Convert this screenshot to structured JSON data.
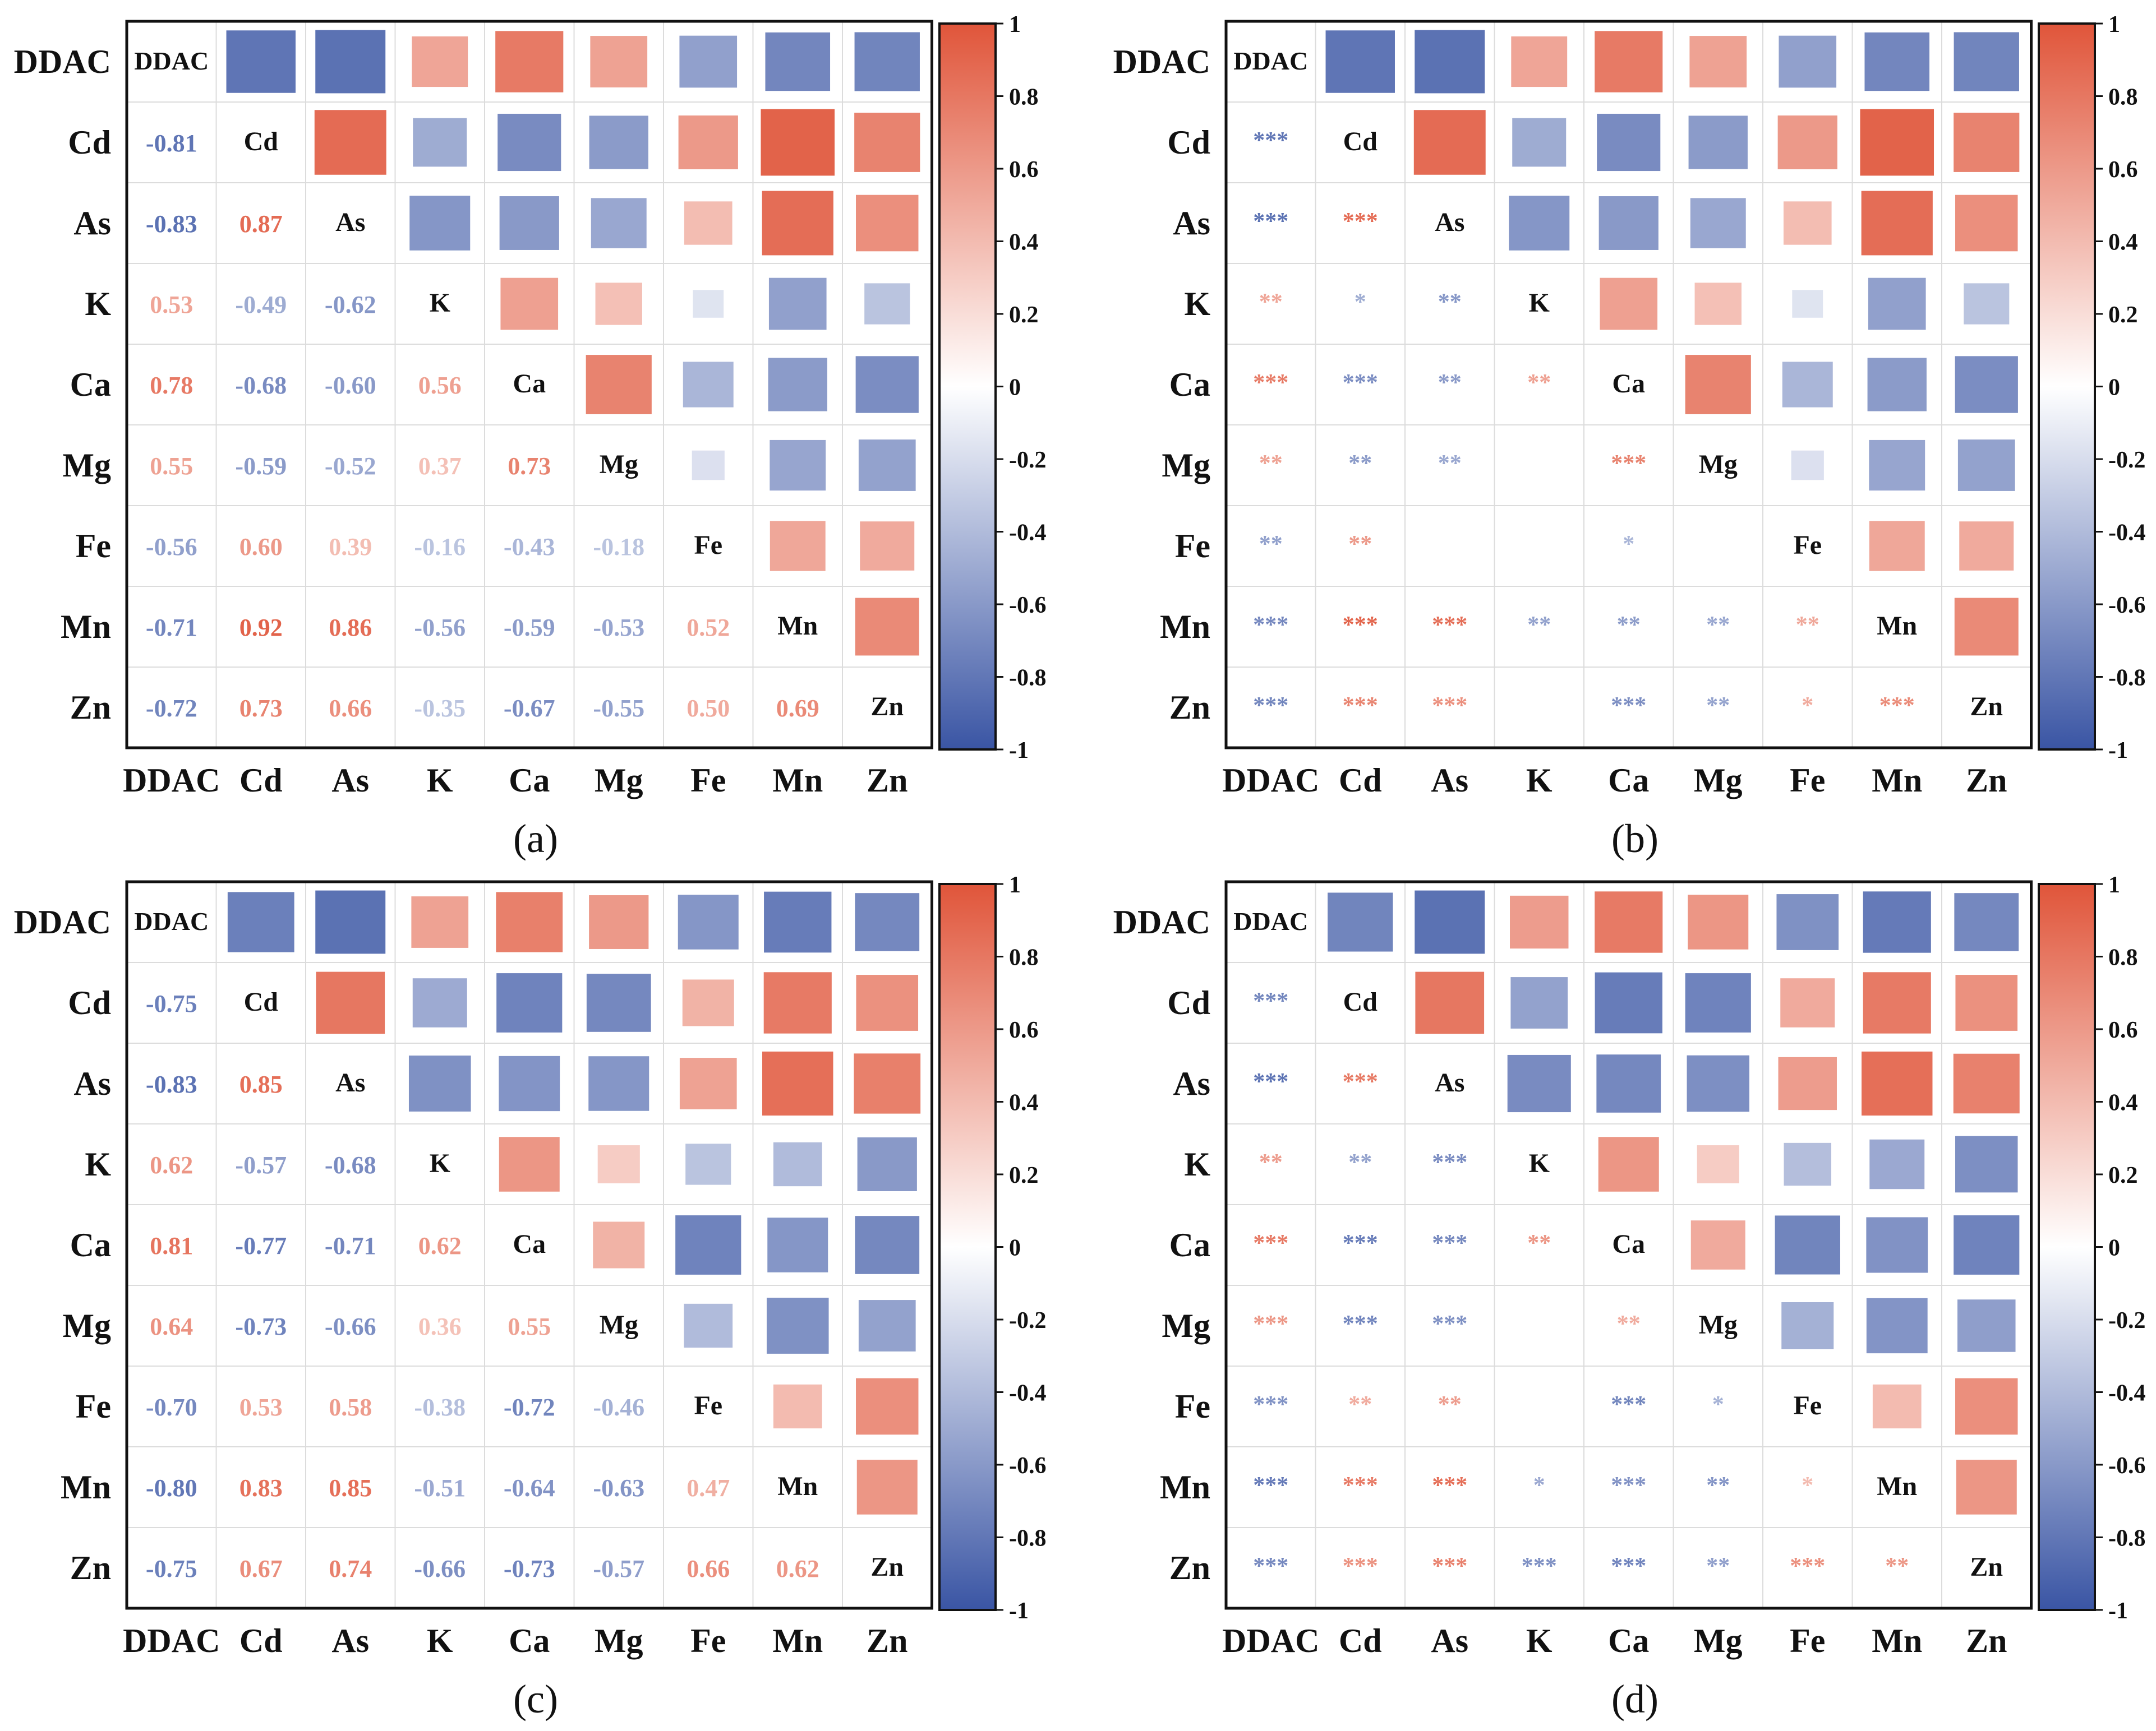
{
  "figure": {
    "panel_labels": [
      "(a)",
      "(b)",
      "(c)",
      "(d)"
    ]
  },
  "colors": {
    "negative": "#3a55a4",
    "neutral": "#ffffff",
    "positive": "#e0553a",
    "frame": "#111111",
    "grid": "#dcdcdc",
    "label": "#111111"
  },
  "chart_data": [
    {
      "type": "heatmap",
      "panel": "(a)",
      "variables": [
        "DDAC",
        "Cd",
        "As",
        "K",
        "Ca",
        "Mg",
        "Fe",
        "Mn",
        "Zn"
      ],
      "colorbar_ticks": [
        "1",
        "0.8",
        "0.6",
        "0.4",
        "0.2",
        "0",
        "-0.2",
        "-0.4",
        "-0.6",
        "-0.8",
        "-1"
      ],
      "lower_triangle": "numeric",
      "value_range": [
        -1,
        1
      ],
      "matrix": [
        [
          1,
          -0.81,
          -0.83,
          0.53,
          0.78,
          0.55,
          -0.56,
          -0.71,
          -0.72
        ],
        [
          -0.81,
          1,
          0.87,
          -0.49,
          -0.68,
          -0.59,
          0.6,
          0.92,
          0.73
        ],
        [
          -0.83,
          0.87,
          1,
          -0.62,
          -0.6,
          -0.52,
          0.39,
          0.86,
          0.66
        ],
        [
          0.53,
          -0.49,
          -0.62,
          1,
          0.56,
          0.37,
          -0.16,
          -0.56,
          -0.35
        ],
        [
          0.78,
          -0.68,
          -0.6,
          0.56,
          1,
          0.73,
          -0.43,
          -0.59,
          -0.67
        ],
        [
          0.55,
          -0.59,
          -0.52,
          0.37,
          0.73,
          1,
          -0.18,
          -0.53,
          -0.55
        ],
        [
          -0.56,
          0.6,
          0.39,
          -0.16,
          -0.43,
          -0.18,
          1,
          0.52,
          0.5
        ],
        [
          -0.71,
          0.92,
          0.86,
          -0.56,
          -0.59,
          -0.53,
          0.52,
          1,
          0.69
        ],
        [
          -0.72,
          0.73,
          0.66,
          -0.35,
          -0.67,
          -0.55,
          0.5,
          0.69,
          1
        ]
      ],
      "lower_labels": [
        [],
        [
          "-0.81"
        ],
        [
          "-0.83",
          "0.87"
        ],
        [
          "0.53",
          "-0.49",
          "-0.62"
        ],
        [
          "0.78",
          "-0.68",
          "-0.60",
          "0.56"
        ],
        [
          "0.55",
          "-0.59",
          "-0.52",
          "0.37",
          "0.73"
        ],
        [
          "-0.56",
          "0.60",
          "0.39",
          "-0.16",
          "-0.43",
          "-0.18"
        ],
        [
          "-0.71",
          "0.92",
          "0.86",
          "-0.56",
          "-0.59",
          "-0.53",
          "0.52"
        ],
        [
          "-0.72",
          "0.73",
          "0.66",
          "-0.35",
          "-0.67",
          "-0.55",
          "0.50",
          "0.69"
        ]
      ]
    },
    {
      "type": "heatmap",
      "panel": "(b)",
      "variables": [
        "DDAC",
        "Cd",
        "As",
        "K",
        "Ca",
        "Mg",
        "Fe",
        "Mn",
        "Zn"
      ],
      "colorbar_ticks": [
        "1",
        "0.8",
        "0.6",
        "0.4",
        "0.2",
        "0",
        "-0.2",
        "-0.4",
        "-0.6",
        "-0.8",
        "-1"
      ],
      "lower_triangle": "significance",
      "value_range": [
        -1,
        1
      ],
      "matrix": [
        [
          1,
          -0.81,
          -0.83,
          0.53,
          0.78,
          0.55,
          -0.56,
          -0.71,
          -0.72
        ],
        [
          -0.81,
          1,
          0.87,
          -0.49,
          -0.68,
          -0.59,
          0.6,
          0.92,
          0.73
        ],
        [
          -0.83,
          0.87,
          1,
          -0.62,
          -0.6,
          -0.52,
          0.39,
          0.86,
          0.66
        ],
        [
          0.53,
          -0.49,
          -0.62,
          1,
          0.56,
          0.37,
          -0.16,
          -0.56,
          -0.35
        ],
        [
          0.78,
          -0.68,
          -0.6,
          0.56,
          1,
          0.73,
          -0.43,
          -0.59,
          -0.67
        ],
        [
          0.55,
          -0.59,
          -0.52,
          0.37,
          0.73,
          1,
          -0.18,
          -0.53,
          -0.55
        ],
        [
          -0.56,
          0.6,
          0.39,
          -0.16,
          -0.43,
          -0.18,
          1,
          0.52,
          0.5
        ],
        [
          -0.71,
          0.92,
          0.86,
          -0.56,
          -0.59,
          -0.53,
          0.52,
          1,
          0.69
        ],
        [
          -0.72,
          0.73,
          0.66,
          -0.35,
          -0.67,
          -0.55,
          0.5,
          0.69,
          1
        ]
      ],
      "lower_labels": [
        [],
        [
          "***"
        ],
        [
          "***",
          "***"
        ],
        [
          "**",
          "*",
          "**"
        ],
        [
          "***",
          "***",
          "**",
          "**"
        ],
        [
          "**",
          "**",
          "**",
          "",
          "***"
        ],
        [
          "**",
          "**",
          "",
          "",
          "*",
          ""
        ],
        [
          "***",
          "***",
          "***",
          "**",
          "**",
          "**",
          "**"
        ],
        [
          "***",
          "***",
          "***",
          "",
          "***",
          "**",
          "*",
          "***"
        ]
      ]
    },
    {
      "type": "heatmap",
      "panel": "(c)",
      "variables": [
        "DDAC",
        "Cd",
        "As",
        "K",
        "Ca",
        "Mg",
        "Fe",
        "Mn",
        "Zn"
      ],
      "colorbar_ticks": [
        "1",
        "0.8",
        "0.6",
        "0.4",
        "0.2",
        "0",
        "-0.2",
        "-0.4",
        "-0.6",
        "-0.8",
        "-1"
      ],
      "lower_triangle": "numeric",
      "value_range": [
        -1,
        1
      ],
      "matrix": [
        [
          1,
          -0.75,
          -0.83,
          0.55,
          0.75,
          0.6,
          -0.62,
          -0.77,
          -0.7
        ],
        [
          -0.75,
          1,
          0.8,
          -0.5,
          -0.73,
          -0.7,
          0.45,
          0.78,
          0.65
        ],
        [
          -0.83,
          0.85,
          1,
          -0.65,
          -0.63,
          -0.62,
          0.55,
          0.85,
          0.75
        ],
        [
          0.62,
          -0.57,
          -0.68,
          1,
          0.62,
          0.3,
          -0.35,
          -0.4,
          -0.6
        ],
        [
          0.81,
          -0.77,
          -0.71,
          0.62,
          1,
          0.45,
          -0.73,
          -0.62,
          -0.7
        ],
        [
          0.64,
          -0.73,
          -0.66,
          0.36,
          0.55,
          1,
          -0.4,
          -0.65,
          -0.55
        ],
        [
          -0.7,
          0.53,
          0.58,
          -0.38,
          -0.72,
          -0.46,
          1,
          0.4,
          0.66
        ],
        [
          -0.8,
          0.83,
          0.85,
          -0.51,
          -0.64,
          -0.63,
          0.47,
          1,
          0.62
        ],
        [
          -0.75,
          0.67,
          0.74,
          -0.66,
          -0.73,
          -0.57,
          0.66,
          0.62,
          1
        ]
      ],
      "lower_labels": [
        [],
        [
          "-0.75"
        ],
        [
          "-0.83",
          "0.85"
        ],
        [
          "0.62",
          "-0.57",
          "-0.68"
        ],
        [
          "0.81",
          "-0.77",
          "-0.71",
          "0.62"
        ],
        [
          "0.64",
          "-0.73",
          "-0.66",
          "0.36",
          "0.55"
        ],
        [
          "-0.70",
          "0.53",
          "0.58",
          "-0.38",
          "-0.72",
          "-0.46"
        ],
        [
          "-0.80",
          "0.83",
          "0.85",
          "-0.51",
          "-0.64",
          "-0.63",
          "0.47"
        ],
        [
          "-0.75",
          "0.67",
          "0.74",
          "-0.66",
          "-0.73",
          "-0.57",
          "0.66",
          "0.62"
        ]
      ]
    },
    {
      "type": "heatmap",
      "panel": "(d)",
      "variables": [
        "DDAC",
        "Cd",
        "As",
        "K",
        "Ca",
        "Mg",
        "Fe",
        "Mn",
        "Zn"
      ],
      "colorbar_ticks": [
        "1",
        "0.8",
        "0.6",
        "0.4",
        "0.2",
        "0",
        "-0.2",
        "-0.4",
        "-0.6",
        "-0.8",
        "-1"
      ],
      "lower_triangle": "significance",
      "value_range": [
        -1,
        1
      ],
      "matrix": [
        [
          1,
          -0.72,
          -0.83,
          0.58,
          0.78,
          0.62,
          -0.65,
          -0.78,
          -0.7
        ],
        [
          -0.72,
          1,
          0.8,
          -0.55,
          -0.77,
          -0.73,
          0.5,
          0.78,
          0.65
        ],
        [
          -0.83,
          0.8,
          1,
          -0.68,
          -0.7,
          -0.66,
          0.58,
          0.85,
          0.74
        ],
        [
          0.58,
          -0.55,
          -0.68,
          1,
          0.62,
          0.3,
          -0.38,
          -0.51,
          -0.66
        ],
        [
          0.78,
          -0.77,
          -0.7,
          0.62,
          1,
          0.5,
          -0.72,
          -0.64,
          -0.73
        ],
        [
          0.62,
          -0.73,
          -0.66,
          0.3,
          0.5,
          1,
          -0.46,
          -0.63,
          -0.57
        ],
        [
          -0.65,
          0.5,
          0.58,
          -0.38,
          -0.72,
          -0.46,
          1,
          0.4,
          0.66
        ],
        [
          -0.78,
          0.78,
          0.85,
          -0.51,
          -0.64,
          -0.63,
          0.4,
          1,
          0.62
        ],
        [
          -0.7,
          0.65,
          0.74,
          -0.66,
          -0.73,
          -0.57,
          0.66,
          0.62,
          1
        ]
      ],
      "lower_labels": [
        [],
        [
          "***"
        ],
        [
          "***",
          "***"
        ],
        [
          "**",
          "**",
          "***"
        ],
        [
          "***",
          "***",
          "***",
          "**"
        ],
        [
          "***",
          "***",
          "***",
          "",
          "**"
        ],
        [
          "***",
          "**",
          "**",
          "",
          "***",
          "*"
        ],
        [
          "***",
          "***",
          "***",
          "*",
          "***",
          "**",
          "*"
        ],
        [
          "***",
          "***",
          "***",
          "***",
          "***",
          "**",
          "***",
          "**"
        ]
      ]
    }
  ]
}
